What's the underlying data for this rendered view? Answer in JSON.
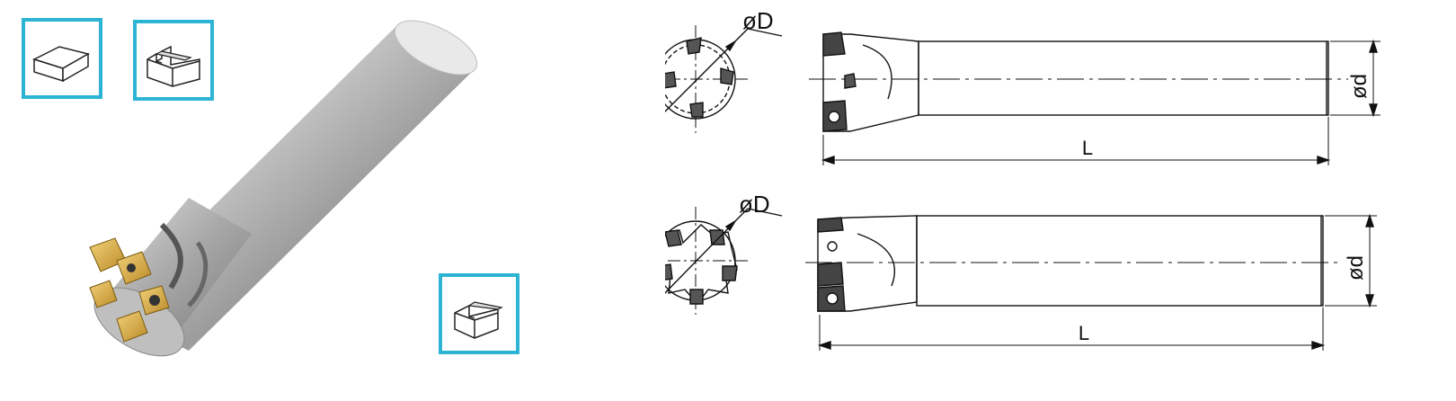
{
  "application_icons": [
    {
      "name": "face-milling-icon"
    },
    {
      "name": "slotting-icon"
    },
    {
      "name": "shoulder-milling-icon"
    }
  ],
  "drawings": [
    {
      "end_label": "øD",
      "shank_label": "ød",
      "length_label": "L"
    },
    {
      "end_label": "øD",
      "shank_label": "ød",
      "length_label": "L"
    }
  ],
  "colors": {
    "icon_border": "#2cb4d4",
    "line": "#111111"
  }
}
